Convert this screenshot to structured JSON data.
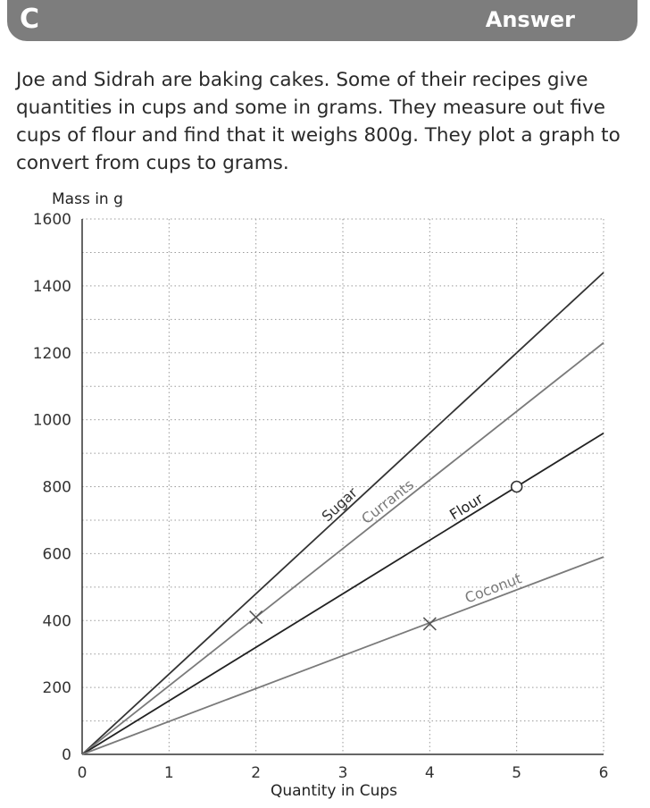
{
  "header": {
    "letter": "C",
    "answer_label": "Answer"
  },
  "problem": {
    "text": "Joe and Sidrah are baking cakes. Some of their recipes give quantities in cups and some in grams. They measure out five cups of flour and find that it weighs 800g. They plot a graph to convert from cups to grams."
  },
  "chart_data": {
    "type": "line",
    "xlabel": "Quantity in Cups",
    "ylabel": "Mass in g",
    "xlim": [
      0,
      6
    ],
    "ylim": [
      0,
      1600
    ],
    "xticks": [
      "0",
      "1",
      "2",
      "3",
      "4",
      "5",
      "6"
    ],
    "yticks": [
      "0",
      "200",
      "400",
      "600",
      "800",
      "1000",
      "1200",
      "1400",
      "1600"
    ],
    "grid": true,
    "series": [
      {
        "name": "Sugar",
        "x": [
          0,
          6
        ],
        "y": [
          0,
          1440
        ],
        "color": "#333333"
      },
      {
        "name": "Currants",
        "x": [
          0,
          6
        ],
        "y": [
          0,
          1230
        ],
        "color": "#7a7a7a"
      },
      {
        "name": "Flour",
        "x": [
          0,
          6
        ],
        "y": [
          0,
          960
        ],
        "color": "#222222"
      },
      {
        "name": "Coconut",
        "x": [
          0,
          6
        ],
        "y": [
          0,
          590
        ],
        "color": "#7a7a7a"
      }
    ],
    "markers": [
      {
        "series": "Currants",
        "x": 2,
        "y": 410,
        "shape": "x"
      },
      {
        "series": "Coconut",
        "x": 4,
        "y": 390,
        "shape": "x"
      },
      {
        "series": "Flour",
        "x": 5,
        "y": 800,
        "shape": "o"
      }
    ]
  }
}
